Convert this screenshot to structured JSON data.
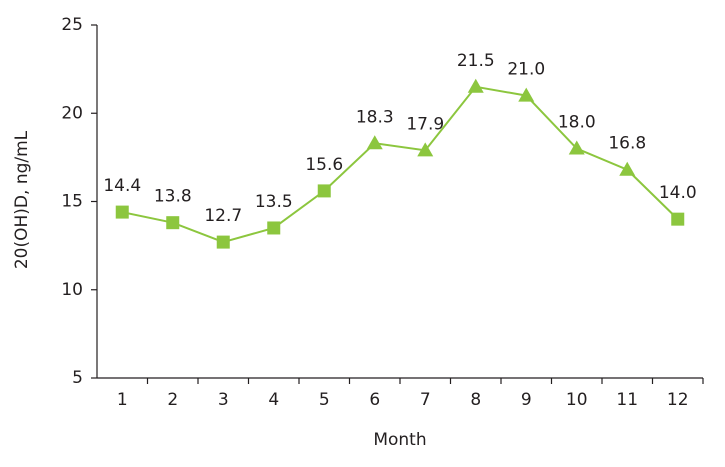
{
  "chart_data": {
    "type": "line",
    "x_label": "Month",
    "y_label": "20(OH)D, ng/mL",
    "categories": [
      "1",
      "2",
      "3",
      "4",
      "5",
      "6",
      "7",
      "8",
      "9",
      "10",
      "11",
      "12"
    ],
    "values": [
      14.4,
      13.8,
      12.7,
      13.5,
      15.6,
      18.3,
      17.9,
      21.5,
      21.0,
      18.0,
      16.8,
      14.0
    ],
    "value_labels": [
      "14.4",
      "13.8",
      "12.7",
      "13.5",
      "15.6",
      "18.3",
      "17.9",
      "21.5",
      "21.0",
      "18.0",
      "16.8",
      "14.0"
    ],
    "markers": [
      "square",
      "square",
      "square",
      "square",
      "square",
      "triangle",
      "triangle",
      "triangle",
      "triangle",
      "triangle",
      "triangle",
      "square"
    ],
    "color": "#8cc63e",
    "ylim": [
      5,
      25
    ],
    "yticks": [
      5,
      10,
      15,
      20,
      25
    ]
  }
}
